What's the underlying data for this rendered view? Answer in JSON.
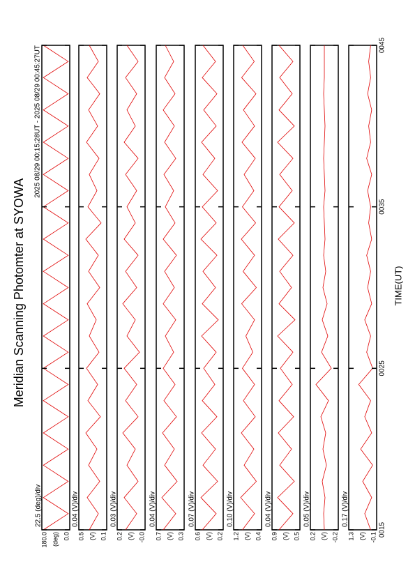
{
  "chart_data": {
    "type": "line",
    "title": "Meridian Scanning Photomter at SYOWA",
    "subtitle": "2025 08/29 00:15:28UT - 2025 08/29 00:45:27UT",
    "xlabel": "TIME(UT)",
    "color": "#e00000",
    "xlim": [
      15,
      45
    ],
    "xticks": [
      {
        "value": 15,
        "label": "0015"
      },
      {
        "value": 25,
        "label": "0025"
      },
      {
        "value": 35,
        "label": "0035"
      },
      {
        "value": 45,
        "label": "0045"
      }
    ],
    "x": [
      15,
      16,
      17,
      18,
      19,
      20,
      21,
      22,
      23,
      24,
      25,
      26,
      27,
      28,
      29,
      30,
      31,
      32,
      33,
      34,
      35,
      36,
      37,
      38,
      39,
      40,
      41,
      42,
      43,
      44,
      45
    ],
    "series": [
      {
        "name": "22.5 (deg)/div",
        "unit": "(deg)",
        "ylim": [
          0,
          180
        ],
        "yticks": [
          {
            "value": 0,
            "label": "0.0"
          },
          {
            "value": 180,
            "label": "180.0"
          }
        ],
        "values": [
          170,
          10,
          170,
          10,
          170,
          10,
          170,
          10,
          170,
          10,
          170,
          10,
          170,
          10,
          170,
          10,
          170,
          10,
          170,
          10,
          170,
          10,
          170,
          10,
          170,
          10,
          170,
          10,
          170,
          10,
          170
        ]
      },
      {
        "name": "0.04 (V)/div",
        "unit": "(V)",
        "ylim": [
          0.1,
          0.5
        ],
        "yticks": [
          0.1,
          0.5
        ],
        "values": [
          0.35,
          0.22,
          0.38,
          0.2,
          0.36,
          0.24,
          0.4,
          0.19,
          0.37,
          0.23,
          0.39,
          0.21,
          0.35,
          0.25,
          0.38,
          0.2,
          0.36,
          0.22,
          0.4,
          0.18,
          0.37,
          0.24,
          0.35,
          0.21,
          0.39,
          0.23,
          0.36,
          0.2,
          0.38,
          0.22,
          0.35
        ]
      },
      {
        "name": "0.03 (V)/div",
        "unit": "(V)",
        "ylim": [
          0,
          0.2
        ],
        "yticks": [
          {
            "value": 0,
            "label": "-0.0"
          },
          0.2
        ],
        "values": [
          0.14,
          0.06,
          0.15,
          0.05,
          0.13,
          0.07,
          0.16,
          0.05,
          0.14,
          0.06,
          0.15,
          0.04,
          0.13,
          0.07,
          0.16,
          0.06,
          0.14,
          0.05,
          0.15,
          0.07,
          0.13,
          0.06,
          0.14,
          0.05,
          0.15,
          0.07,
          0.13,
          0.06,
          0.14,
          0.05,
          0.13
        ]
      },
      {
        "name": "0.04 (V)/div",
        "unit": "(V)",
        "ylim": [
          0.3,
          0.7
        ],
        "yticks": [
          0.3,
          0.7
        ],
        "values": [
          0.6,
          0.42,
          0.62,
          0.4,
          0.58,
          0.44,
          0.61,
          0.41,
          0.59,
          0.43,
          0.6,
          0.45,
          0.57,
          0.42,
          0.6,
          0.44,
          0.58,
          0.41,
          0.6,
          0.43,
          0.57,
          0.45,
          0.59,
          0.42,
          0.58,
          0.44,
          0.6,
          0.43,
          0.58,
          0.45,
          0.57
        ]
      },
      {
        "name": "0.07 (V)/div",
        "unit": "(V)",
        "ylim": [
          0.2,
          0.6
        ],
        "yticks": [
          0.2,
          0.6
        ],
        "values": [
          0.5,
          0.3,
          0.52,
          0.28,
          0.49,
          0.31,
          0.51,
          0.29,
          0.5,
          0.32,
          0.48,
          0.3,
          0.51,
          0.27,
          0.5,
          0.31,
          0.49,
          0.29,
          0.52,
          0.3,
          0.5,
          0.28,
          0.49,
          0.32,
          0.51,
          0.3,
          0.48,
          0.29,
          0.5,
          0.31,
          0.49
        ]
      },
      {
        "name": "0.10 (V)/div",
        "unit": "(V)",
        "ylim": [
          0.4,
          1.2
        ],
        "yticks": [
          0.4,
          1.2
        ],
        "values": [
          0.95,
          0.6,
          1.0,
          0.55,
          0.9,
          0.62,
          0.98,
          0.58,
          0.92,
          0.6,
          0.95,
          0.65,
          0.85,
          0.6,
          0.97,
          0.55,
          0.93,
          0.6,
          0.98,
          0.57,
          0.95,
          0.62,
          0.9,
          0.58,
          0.96,
          0.6,
          0.92,
          0.56,
          0.97,
          0.61,
          0.94
        ]
      },
      {
        "name": "0.04 (V)/div",
        "unit": "(V)",
        "ylim": [
          0.5,
          0.9
        ],
        "yticks": [
          0.5,
          0.9
        ],
        "values": [
          0.8,
          0.6,
          0.82,
          0.58,
          0.79,
          0.62,
          0.81,
          0.59,
          0.8,
          0.61,
          0.78,
          0.6,
          0.82,
          0.57,
          0.8,
          0.62,
          0.79,
          0.6,
          0.81,
          0.58,
          0.8,
          0.61,
          0.79,
          0.6,
          0.82,
          0.58,
          0.8,
          0.61,
          0.79,
          0.6,
          0.8
        ]
      },
      {
        "name": "0.05 (V)/div",
        "unit": "(V)",
        "ylim": [
          -0.2,
          0.2
        ],
        "yticks": [
          -0.2,
          0.2
        ],
        "values": [
          0.0,
          0.01,
          -0.01,
          0.03,
          -0.03,
          0.02,
          -0.02,
          0.05,
          -0.06,
          0.12,
          -0.1,
          0.04,
          -0.05,
          0.03,
          -0.04,
          0.02,
          -0.02,
          0.01,
          -0.01,
          0.0,
          0.01,
          -0.01,
          0.0,
          0.01,
          0.0,
          -0.01,
          0.0,
          0.01,
          0.0,
          0.0,
          0.0
        ]
      },
      {
        "name": "0.17 (V)/div",
        "unit": "(V)",
        "ylim": [
          -0.1,
          1.3
        ],
        "yticks": [
          -0.1,
          1.3
        ],
        "values": [
          0.2,
          0.5,
          0.15,
          0.6,
          0.1,
          0.7,
          0.15,
          0.5,
          0.2,
          0.8,
          0.1,
          0.4,
          0.2,
          0.5,
          0.15,
          0.35,
          0.2,
          0.4,
          0.15,
          0.3,
          0.2,
          0.35,
          0.15,
          0.4,
          0.2,
          0.3,
          0.15,
          0.35,
          0.2,
          0.3,
          0.2
        ]
      }
    ]
  }
}
